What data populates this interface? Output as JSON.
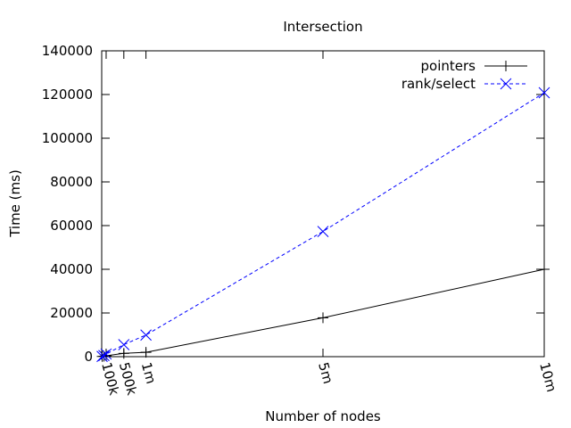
{
  "chart_data": {
    "type": "line",
    "title": "Intersection",
    "xlabel": "Number of nodes",
    "ylabel": "Time (ms)",
    "xlim": [
      0,
      10000000
    ],
    "ylim": [
      0,
      140000
    ],
    "x_ticks": [
      {
        "value": 100000,
        "label": "100k"
      },
      {
        "value": 500000,
        "label": "500k"
      },
      {
        "value": 1000000,
        "label": "1m"
      },
      {
        "value": 5000000,
        "label": "5m"
      },
      {
        "value": 10000000,
        "label": "10m"
      }
    ],
    "y_ticks": [
      0,
      20000,
      40000,
      60000,
      80000,
      100000,
      120000,
      140000
    ],
    "grid": false,
    "legend_position": "top-right",
    "series": [
      {
        "name": "pointers",
        "color": "#000000",
        "line": "solid",
        "marker": "plus",
        "x": [
          10000,
          50000,
          100000,
          500000,
          1000000,
          5000000,
          10000000
        ],
        "y": [
          100,
          200,
          400,
          1500,
          2000,
          17800,
          40000
        ]
      },
      {
        "name": "rank/select",
        "color": "#0000ff",
        "line": "dashed",
        "marker": "cross",
        "x": [
          10000,
          50000,
          100000,
          500000,
          1000000,
          5000000,
          10000000
        ],
        "y": [
          100,
          500,
          1200,
          5500,
          9900,
          57300,
          120800
        ]
      }
    ]
  }
}
